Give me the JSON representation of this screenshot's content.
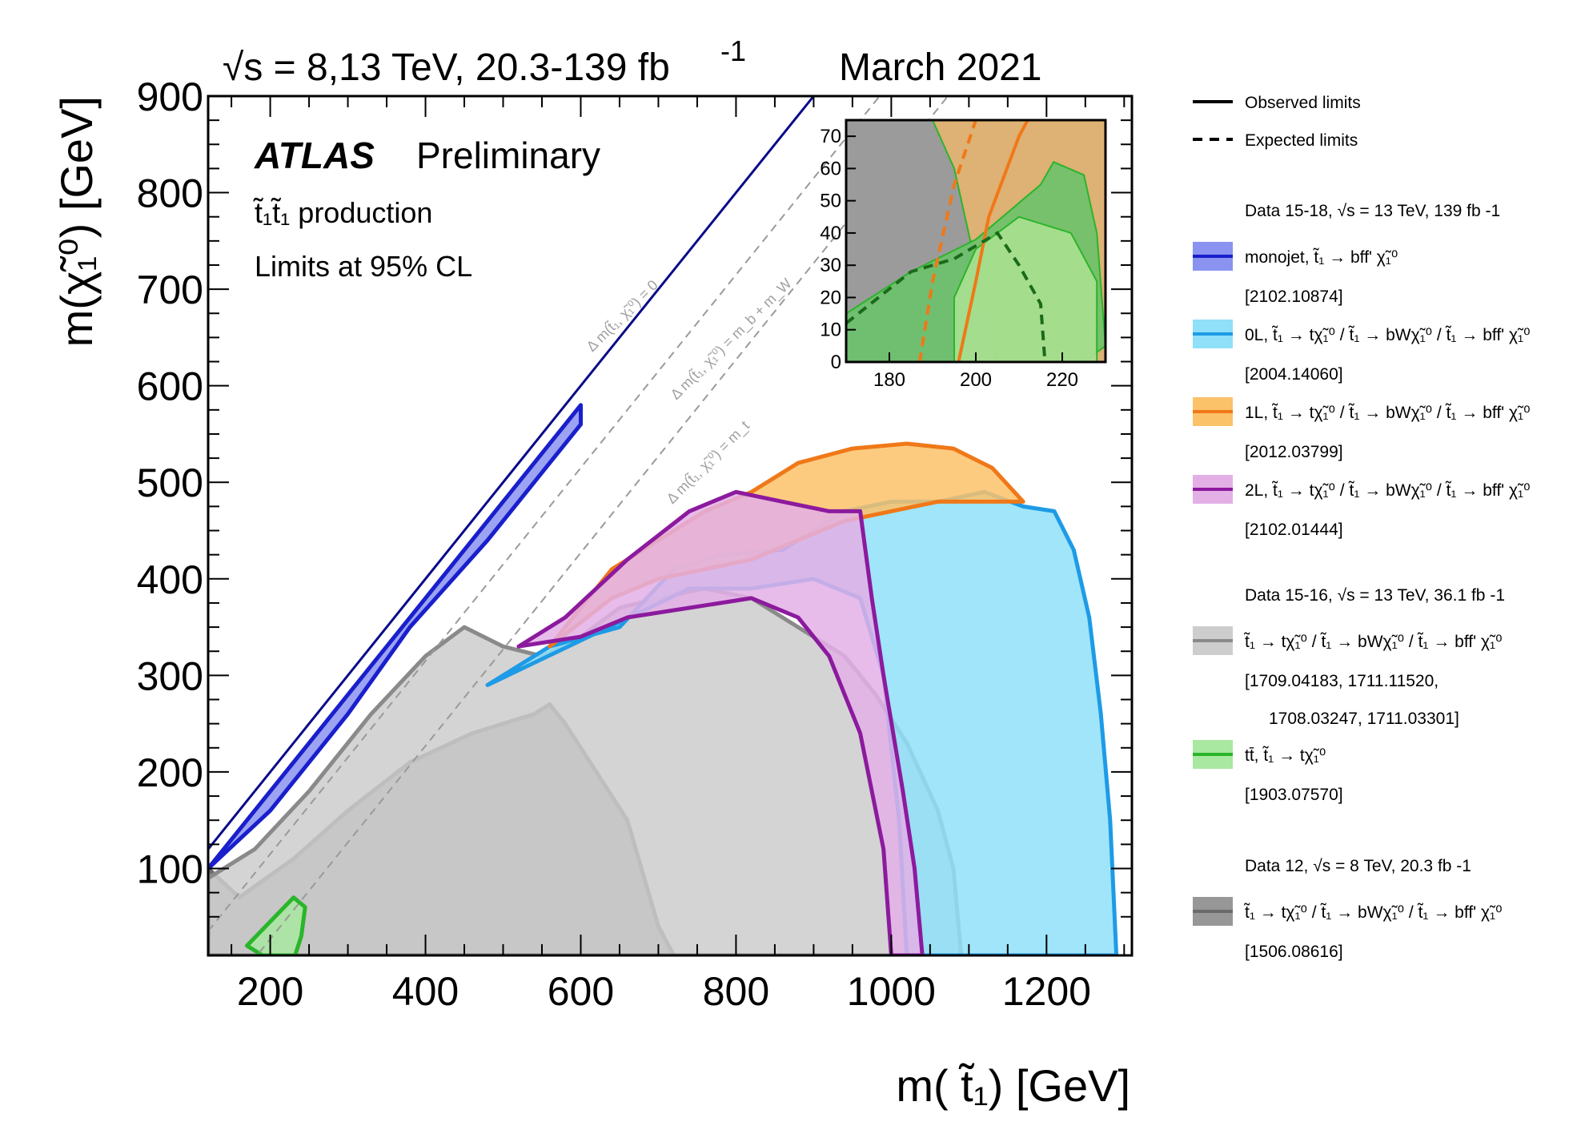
{
  "header": {
    "energy": "√s = 8,13 TeV, 20.3-139 fb",
    "energy_sup": "-1",
    "date": "March 2021"
  },
  "atlas": {
    "label": "ATLAS",
    "status": "Preliminary"
  },
  "info": {
    "process": "t̃₁t̃₁ production",
    "cl": "Limits at 95% CL"
  },
  "diagonals": [
    {
      "label": "Δ m(t̃₁, χ̃₁⁰) = 0",
      "offset_gev": 0
    },
    {
      "label": "Δ m(t̃₁, χ̃₁⁰) = m_b + m_W",
      "offset_gev": 85
    },
    {
      "label": "Δ m(t̃₁, χ̃₁⁰) = m_t",
      "offset_gev": 173
    }
  ],
  "legend": {
    "line_styles": [
      {
        "label": "Observed limits",
        "style": "solid"
      },
      {
        "label": "Expected limits",
        "style": "dashed"
      }
    ],
    "groups": [
      {
        "heading": "Data 15-18, √s = 13 TeV, 139 fb -1",
        "entries": [
          {
            "label": "monojet, t̃₁ → bff' χ̃₁⁰",
            "ref": "[2102.10874]",
            "fill": "#8a93f0",
            "line": "#1a1fcc"
          },
          {
            "label": "0L, t̃₁ → tχ̃₁⁰ / t̃₁ → bWχ̃₁⁰ / t̃₁ → bff' χ̃₁⁰",
            "ref": "[2004.14060]",
            "fill": "#8fe0f8",
            "line": "#1e9be6"
          },
          {
            "label": "1L, t̃₁ → tχ̃₁⁰ / t̃₁ → bWχ̃₁⁰ / t̃₁ → bff' χ̃₁⁰",
            "ref": "[2012.03799]",
            "fill": "#fbc26a",
            "line": "#f07818"
          },
          {
            "label": "2L, t̃₁ → tχ̃₁⁰ / t̃₁ → bWχ̃₁⁰ / t̃₁ → bff' χ̃₁⁰",
            "ref": "[2102.01444]",
            "fill": "#e3b0e6",
            "line": "#8c1a9e"
          }
        ]
      },
      {
        "heading": "Data 15-16, √s = 13 TeV, 36.1 fb -1",
        "entries": [
          {
            "label": "t̃₁ → tχ̃₁⁰ / t̃₁ → bWχ̃₁⁰ / t̃₁ → bff' χ̃₁⁰",
            "ref": "[1709.04183, 1711.11520,",
            "ref2": "1708.03247, 1711.03301]",
            "fill": "#cdcdcd",
            "line": "#8a8a8a"
          },
          {
            "label": "tt̄, t̃₁ → tχ̃₁⁰",
            "ref": "[1903.07570]",
            "fill": "#a8e8a0",
            "line": "#2ab52a"
          }
        ]
      },
      {
        "heading": "Data 12, √s = 8 TeV, 20.3 fb -1",
        "entries": [
          {
            "label": "t̃₁ → tχ̃₁⁰ / t̃₁ → bWχ̃₁⁰ / t̃₁ → bff' χ̃₁⁰",
            "ref": "[1506.08616]",
            "fill": "#979797",
            "line": "#6a6a6a"
          }
        ]
      }
    ]
  },
  "chart_data": {
    "type": "area",
    "title": "√s = 8,13 TeV, 20.3-139 fb-1, March 2021",
    "xlabel": "m( t̃₁) [GeV]",
    "ylabel": "m(χ̃₁⁰) [GeV]",
    "xlim": [
      120,
      1310
    ],
    "ylim": [
      10,
      900
    ],
    "x_ticks": [
      200,
      400,
      600,
      800,
      1000,
      1200
    ],
    "y_ticks": [
      100,
      200,
      300,
      400,
      500,
      600,
      700,
      800,
      900
    ],
    "series": [
      {
        "name": "Data 12 (8 TeV) observed",
        "fill": "#979797",
        "line": "#6a6a6a",
        "points": [
          [
            120,
            10
          ],
          [
            120,
            100
          ],
          [
            160,
            70
          ],
          [
            230,
            110
          ],
          [
            300,
            160
          ],
          [
            380,
            210
          ],
          [
            460,
            240
          ],
          [
            540,
            260
          ],
          [
            560,
            270
          ],
          [
            580,
            250
          ],
          [
            620,
            200
          ],
          [
            660,
            150
          ],
          [
            700,
            40
          ],
          [
            720,
            10
          ]
        ]
      },
      {
        "name": "Data 15-16 observed",
        "fill": "#cdcdcd",
        "line": "#8a8a8a",
        "points": [
          [
            120,
            10
          ],
          [
            120,
            90
          ],
          [
            180,
            120
          ],
          [
            250,
            180
          ],
          [
            330,
            260
          ],
          [
            400,
            320
          ],
          [
            450,
            350
          ],
          [
            500,
            330
          ],
          [
            550,
            320
          ],
          [
            600,
            340
          ],
          [
            650,
            370
          ],
          [
            700,
            380
          ],
          [
            760,
            390
          ],
          [
            820,
            380
          ],
          [
            880,
            350
          ],
          [
            940,
            320
          ],
          [
            980,
            280
          ],
          [
            1020,
            230
          ],
          [
            1060,
            160
          ],
          [
            1080,
            100
          ],
          [
            1090,
            10
          ]
        ]
      },
      {
        "name": "0L observed",
        "fill": "#8fe0f8",
        "line": "#1e9be6",
        "points": [
          [
            480,
            290
          ],
          [
            560,
            330
          ],
          [
            650,
            350
          ],
          [
            720,
            410
          ],
          [
            780,
            425
          ],
          [
            860,
            430
          ],
          [
            940,
            470
          ],
          [
            1000,
            480
          ],
          [
            1060,
            480
          ],
          [
            1120,
            490
          ],
          [
            1170,
            475
          ],
          [
            1210,
            470
          ],
          [
            1235,
            430
          ],
          [
            1255,
            360
          ],
          [
            1270,
            260
          ],
          [
            1282,
            150
          ],
          [
            1290,
            10
          ],
          [
            1020,
            10
          ],
          [
            1010,
            150
          ],
          [
            990,
            300
          ],
          [
            960,
            380
          ],
          [
            900,
            400
          ],
          [
            820,
            390
          ],
          [
            740,
            390
          ]
        ]
      },
      {
        "name": "1L observed",
        "fill": "#fbc26a",
        "line": "#f07818",
        "points": [
          [
            560,
            330
          ],
          [
            640,
            410
          ],
          [
            700,
            440
          ],
          [
            760,
            470
          ],
          [
            820,
            490
          ],
          [
            880,
            520
          ],
          [
            950,
            535
          ],
          [
            1020,
            540
          ],
          [
            1080,
            535
          ],
          [
            1130,
            515
          ],
          [
            1170,
            480
          ],
          [
            1120,
            480
          ],
          [
            1060,
            480
          ],
          [
            1000,
            470
          ],
          [
            940,
            460
          ],
          [
            880,
            440
          ],
          [
            820,
            420
          ],
          [
            760,
            410
          ],
          [
            700,
            400
          ],
          [
            640,
            380
          ]
        ]
      },
      {
        "name": "2L observed",
        "fill": "#e3b0e6",
        "line": "#8c1a9e",
        "points": [
          [
            520,
            330
          ],
          [
            580,
            360
          ],
          [
            660,
            420
          ],
          [
            740,
            470
          ],
          [
            800,
            490
          ],
          [
            860,
            480
          ],
          [
            920,
            470
          ],
          [
            960,
            470
          ],
          [
            975,
            380
          ],
          [
            990,
            300
          ],
          [
            1015,
            180
          ],
          [
            1030,
            100
          ],
          [
            1040,
            10
          ],
          [
            1000,
            10
          ],
          [
            990,
            120
          ],
          [
            960,
            240
          ],
          [
            920,
            320
          ],
          [
            880,
            360
          ],
          [
            820,
            380
          ],
          [
            740,
            370
          ],
          [
            660,
            360
          ],
          [
            600,
            340
          ]
        ]
      },
      {
        "name": "monojet observed",
        "fill": "#8a93f0",
        "line": "#1a1fcc",
        "points": [
          [
            120,
            100
          ],
          [
            600,
            580
          ],
          [
            600,
            560
          ],
          [
            560,
            520
          ],
          [
            480,
            440
          ],
          [
            380,
            350
          ],
          [
            300,
            260
          ],
          [
            200,
            160
          ]
        ]
      },
      {
        "name": "ttbar observed",
        "fill": "#a8e8a0",
        "line": "#2ab52a",
        "points": [
          [
            170,
            20
          ],
          [
            200,
            45
          ],
          [
            230,
            70
          ],
          [
            245,
            60
          ],
          [
            240,
            30
          ],
          [
            232,
            10
          ],
          [
            190,
            10
          ]
        ]
      }
    ],
    "inset": {
      "xlim": [
        170,
        230
      ],
      "ylim": [
        0,
        75
      ],
      "x_ticks": [
        180,
        200,
        220
      ],
      "y_ticks": [
        0,
        10,
        20,
        30,
        40,
        50,
        60,
        70
      ]
    }
  }
}
